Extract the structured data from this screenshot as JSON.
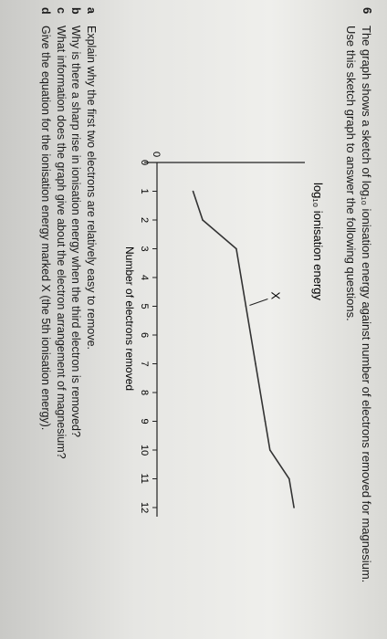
{
  "question": {
    "number": "6",
    "stem_line1": "The graph shows a sketch of log₁₀ ionisation energy against number of electrons removed for magnesium.",
    "stem_line2": "Use this sketch graph to answer the following questions."
  },
  "chart_data": {
    "type": "line",
    "ylabel": "log₁₀ ionisation energy",
    "xlabel": "Number of electrons removed",
    "x_ticks": [
      "0",
      "1",
      "2",
      "3",
      "4",
      "5",
      "6",
      "7",
      "8",
      "9",
      "10",
      "11",
      "12"
    ],
    "y_ticks": [
      "0"
    ],
    "xlim": [
      0,
      12
    ],
    "annotation": "X",
    "series": [
      {
        "x": [
          1,
          2,
          3,
          4,
          5,
          6,
          7,
          8,
          9,
          10,
          11,
          12
        ],
        "y": [
          0.3,
          0.38,
          0.66,
          0.7,
          0.74,
          0.78,
          0.82,
          0.86,
          0.9,
          0.94,
          1.1,
          1.14
        ]
      }
    ]
  },
  "parts": [
    {
      "label": "a",
      "text": "Explain why the first two electrons are relatively easy to remove."
    },
    {
      "label": "b",
      "text": "Why is there a sharp rise in ionisation energy when the third electron is removed?"
    },
    {
      "label": "c",
      "text": "What information does the graph give about the electron arrangement of magnesium?"
    },
    {
      "label": "d",
      "text": "Give the equation for the ionisation energy marked X (the 5th ionisation energy)."
    }
  ]
}
